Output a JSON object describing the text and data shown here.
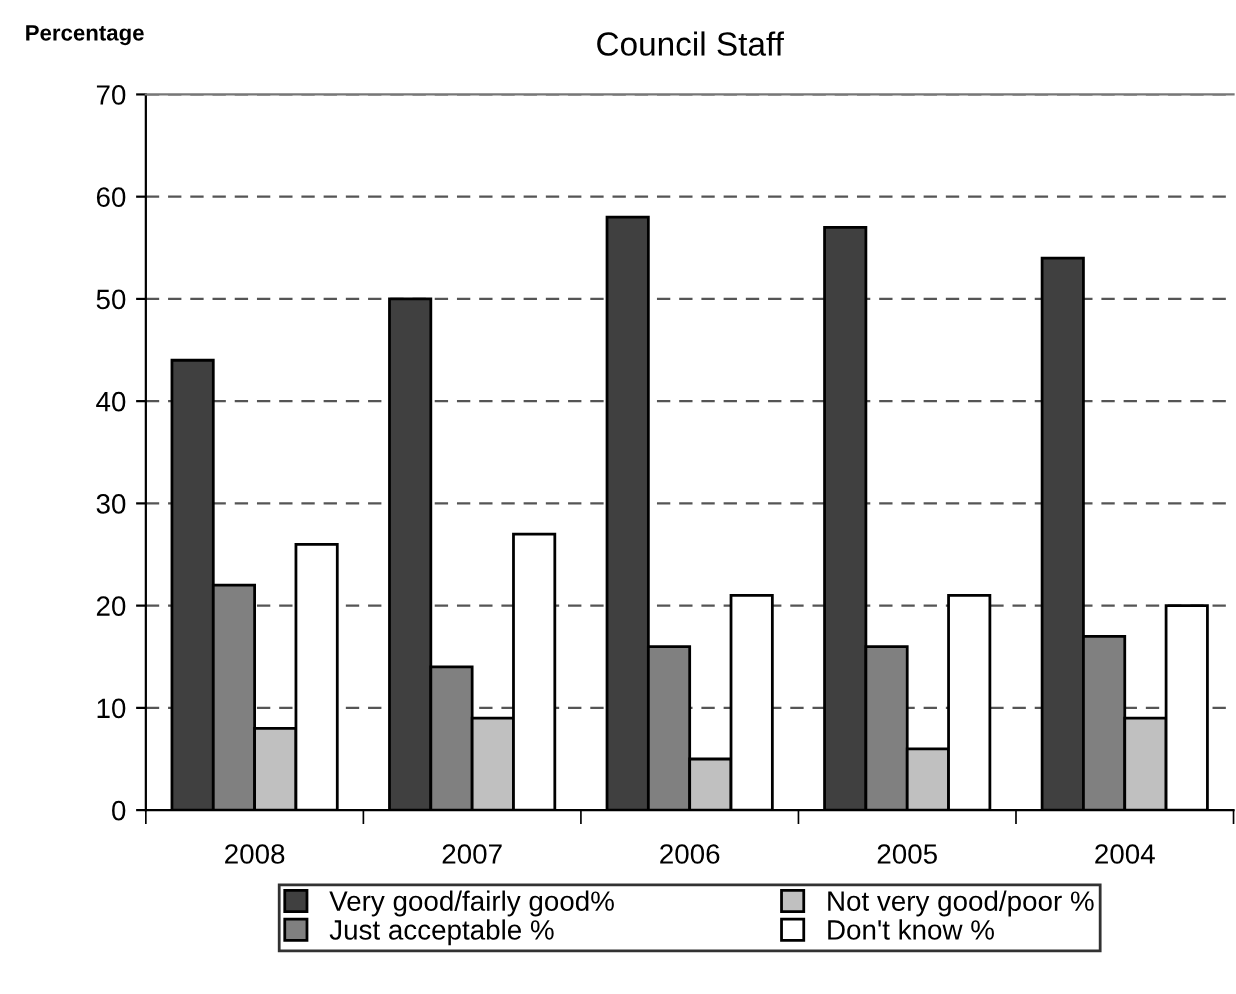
{
  "chart_data": {
    "type": "bar",
    "title": "Council Staff",
    "ylabel": "Percentage",
    "categories": [
      "2008",
      "2007",
      "2006",
      "2005",
      "2004"
    ],
    "series": [
      {
        "name": "Very good/fairly good%",
        "color": "#404040",
        "values": [
          44,
          50,
          58,
          57,
          54
        ]
      },
      {
        "name": "Just acceptable %",
        "color": "#808080",
        "values": [
          22,
          14,
          16,
          16,
          17
        ]
      },
      {
        "name": "Not very good/poor %",
        "color": "#c0c0c0",
        "values": [
          8,
          9,
          5,
          6,
          9
        ]
      },
      {
        "name": "Don't know %",
        "color": "#ffffff",
        "values": [
          26,
          27,
          21,
          21,
          20
        ]
      }
    ],
    "ylim": [
      0,
      70
    ],
    "yticks": [
      0,
      10,
      20,
      30,
      40,
      50,
      60,
      70
    ],
    "grid": "y",
    "legend": "bottom"
  }
}
